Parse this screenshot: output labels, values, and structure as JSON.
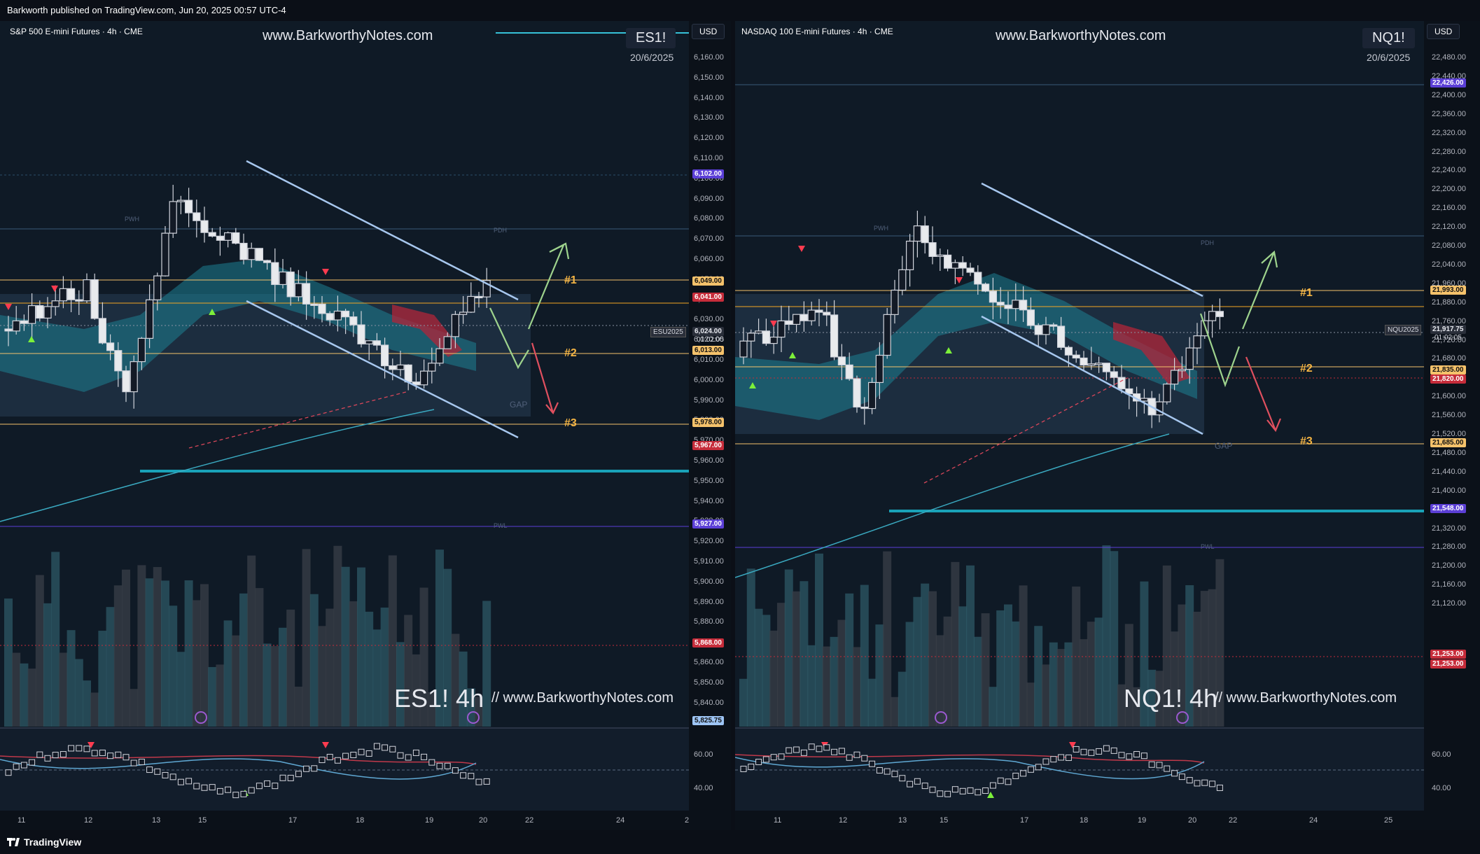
{
  "header": {
    "published": "Barkworth published on TradingView.com, Jun 20, 2025 00:57 UTC-4"
  },
  "footer": {
    "brand": "TradingView",
    "logo_icon": "tradingview-logo-icon"
  },
  "panes": [
    {
      "id": "es",
      "symbol": "S&P 500 E-mini Futures · 4h · CME",
      "site": "www.BarkworthyNotes.com",
      "ticker": "ES1!",
      "date": "20/6/2025",
      "currency": "USD",
      "watermark_big": "ES1! 4h",
      "watermark_site": "//  www.BarkworthyNotes.com",
      "current_symbol": "ESU2025",
      "current_price": "6,024.00",
      "countdown": "01:02:05",
      "price_ticks": [
        "6,160.00",
        "6,150.00",
        "6,140.00",
        "6,130.00",
        "6,120.00",
        "6,110.00",
        "6,100.00",
        "6,090.00",
        "6,080.00",
        "6,070.00",
        "6,060.00",
        "6,050.00",
        "6,040.00",
        "6,030.00",
        "6,020.00",
        "6,010.00",
        "6,000.00",
        "5,990.00",
        "5,980.00",
        "5,970.00",
        "5,960.00",
        "5,950.00",
        "5,940.00",
        "5,930.00",
        "5,920.00",
        "5,910.00",
        "5,900.00",
        "5,890.00",
        "5,880.00",
        "5,870.00",
        "5,860.00",
        "5,850.00",
        "5,840.00"
      ],
      "badges": [
        {
          "text": "6,102.00",
          "color": "#5b3fd6"
        },
        {
          "text": "6,049.00",
          "color": "#f5c26b"
        },
        {
          "text": "6,041.00",
          "color": "#c62c3a"
        },
        {
          "text": "6,013.00",
          "color": "#f5c26b"
        },
        {
          "text": "5,978.00",
          "color": "#f5c26b"
        },
        {
          "text": "5,967.00",
          "color": "#c62c3a"
        },
        {
          "text": "5,927.00",
          "color": "#5b3fd6"
        },
        {
          "text": "5,868.00",
          "color": "#c62c3a"
        },
        {
          "text": "5,825.75",
          "color": "#9ec5f5"
        }
      ],
      "levels": [
        {
          "label": "#1"
        },
        {
          "label": "#2"
        },
        {
          "label": "#3"
        }
      ],
      "level_names": [
        "PWH",
        "PDH",
        "GAP",
        "PWL"
      ],
      "time_ticks": [
        "11",
        "12",
        "13",
        "15",
        "17",
        "18",
        "19",
        "20",
        "22",
        "24",
        "2"
      ],
      "osc_ticks": [
        "60.00",
        "40.00"
      ]
    },
    {
      "id": "nq",
      "symbol": "NASDAQ 100 E-mini Futures · 4h · CME",
      "site": "www.BarkworthyNotes.com",
      "ticker": "NQ1!",
      "date": "20/6/2025",
      "currency": "USD",
      "watermark_big": "NQ1! 4h",
      "watermark_site": "//  www.BarkworthyNotes.com",
      "current_symbol": "NQU2025",
      "current_price": "21,917.75",
      "countdown": "01:02:05",
      "price_ticks": [
        "22,480.00",
        "22,440.00",
        "22,400.00",
        "22,360.00",
        "22,320.00",
        "22,280.00",
        "22,240.00",
        "22,200.00",
        "22,160.00",
        "22,120.00",
        "22,080.00",
        "22,040.00",
        "21,960.00",
        "21,880.00",
        "21,760.00",
        "21,720.00",
        "21,680.00",
        "21,640.00",
        "21,600.00",
        "21,560.00",
        "21,520.00",
        "21,480.00",
        "21,440.00",
        "21,400.00",
        "21,360.00",
        "21,320.00",
        "21,280.00",
        "21,200.00",
        "21,160.00",
        "21,120.00"
      ],
      "badges": [
        {
          "text": "22,426.00",
          "color": "#5b3fd6"
        },
        {
          "text": "21,993.00",
          "color": "#f5c26b"
        },
        {
          "text": "21,835.00",
          "color": "#f5c26b"
        },
        {
          "text": "21,820.00",
          "color": "#c62c3a"
        },
        {
          "text": "21,685.00",
          "color": "#f5c26b"
        },
        {
          "text": "21,548.00",
          "color": "#5b3fd6"
        },
        {
          "text": "21,253.00",
          "color": "#c62c3a"
        },
        {
          "text": "21,253.00",
          "color": "#c62c3a"
        }
      ],
      "levels": [
        {
          "label": "#1"
        },
        {
          "label": "#2"
        },
        {
          "label": "#3"
        }
      ],
      "level_names": [
        "PWH",
        "PDH",
        "GAP",
        "PWL"
      ],
      "time_ticks": [
        "11",
        "12",
        "13",
        "15",
        "17",
        "18",
        "19",
        "20",
        "22",
        "24",
        "25"
      ],
      "osc_ticks": [
        "60.00",
        "40.00"
      ]
    }
  ]
}
